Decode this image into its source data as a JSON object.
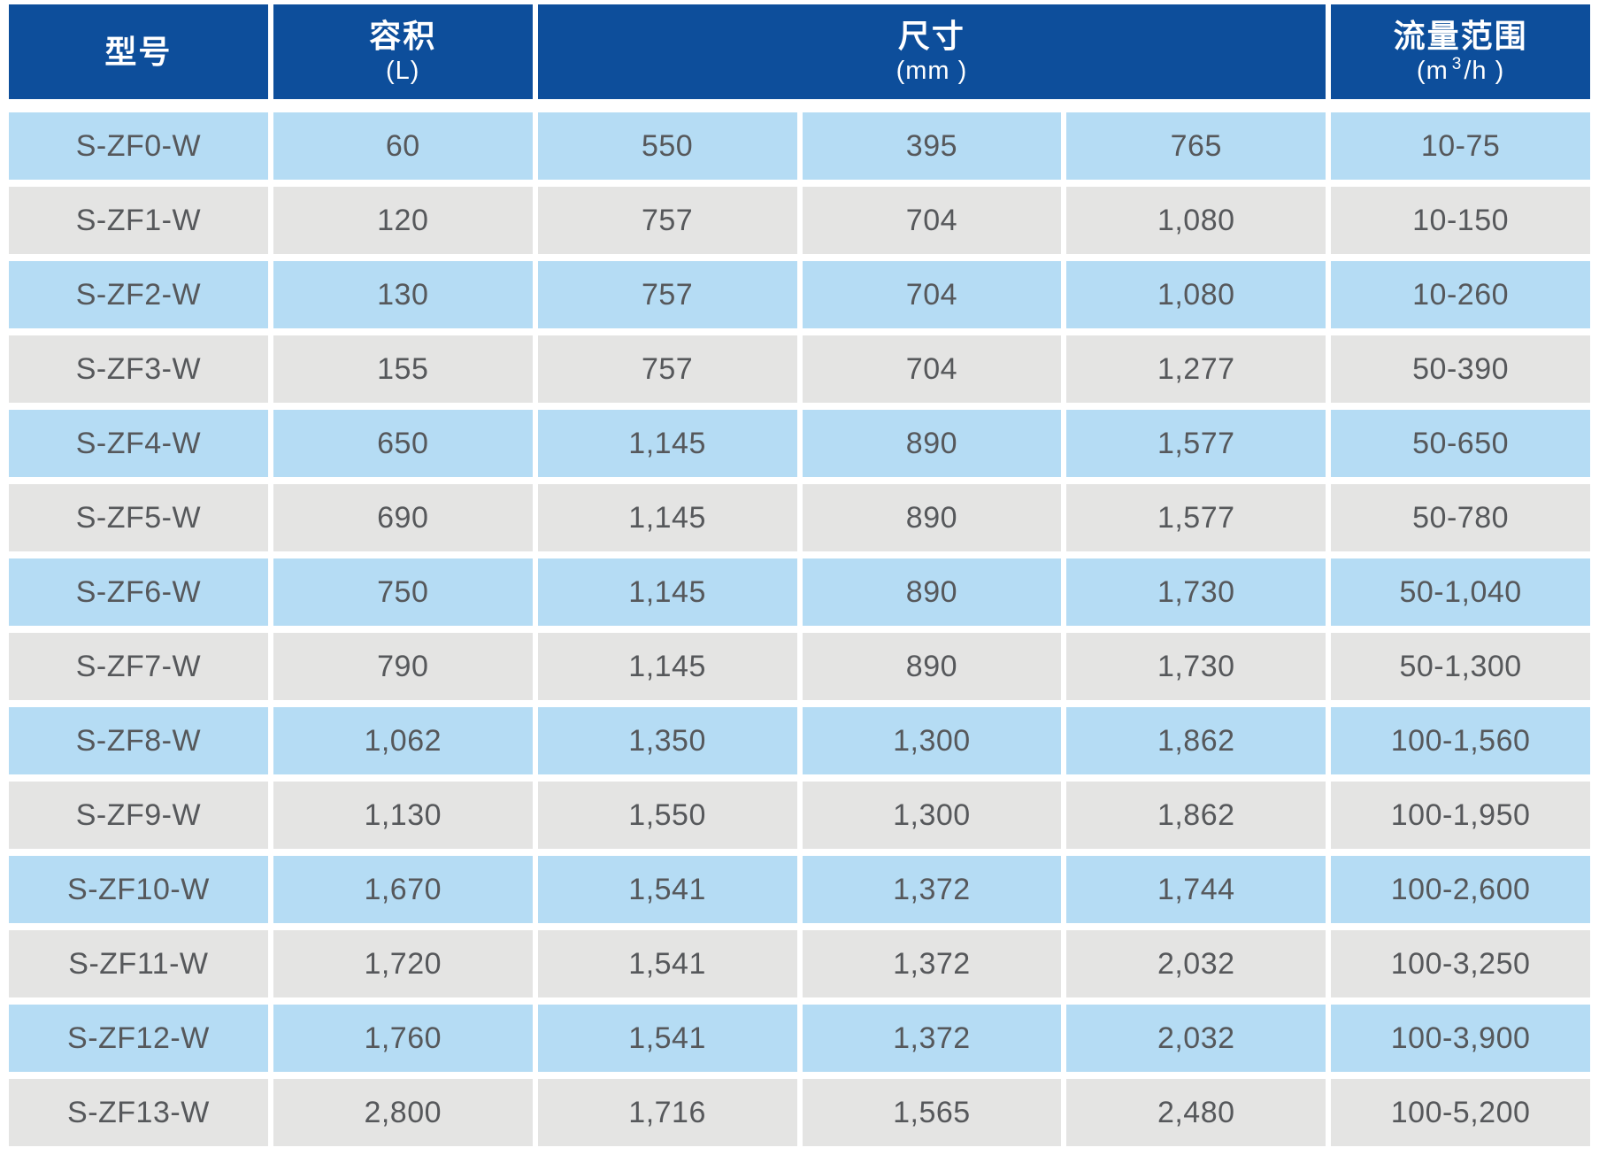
{
  "header": {
    "model_title": "型号",
    "volume_title": "容积",
    "volume_unit": "(L)",
    "dims_title": "尺寸",
    "dims_unit": "(mm )",
    "flow_title": "流量范围",
    "flow_unit_pre": "(m",
    "flow_unit_sup": "3",
    "flow_unit_post": "/h )"
  },
  "colors": {
    "header_bg": "#0D4E9B",
    "header_text": "#FFFFFF",
    "row_blue": "#B5DCF4",
    "row_gray": "#E4E4E3",
    "cell_text": "#56585B"
  },
  "chart_data": {
    "type": "table",
    "title": "",
    "columns": [
      "型号",
      "容积 (L)",
      "尺寸 (mm)",
      "尺寸 (mm)",
      "尺寸 (mm)",
      "流量范围 (m³/h)"
    ],
    "dimension_header_colspan": 3,
    "rows": [
      [
        "S-ZF0-W",
        "60",
        "550",
        "395",
        "765",
        "10-75"
      ],
      [
        "S-ZF1-W",
        "120",
        "757",
        "704",
        "1,080",
        "10-150"
      ],
      [
        "S-ZF2-W",
        "130",
        "757",
        "704",
        "1,080",
        "10-260"
      ],
      [
        "S-ZF3-W",
        "155",
        "757",
        "704",
        "1,277",
        "50-390"
      ],
      [
        "S-ZF4-W",
        "650",
        "1,145",
        "890",
        "1,577",
        "50-650"
      ],
      [
        "S-ZF5-W",
        "690",
        "1,145",
        "890",
        "1,577",
        "50-780"
      ],
      [
        "S-ZF6-W",
        "750",
        "1,145",
        "890",
        "1,730",
        "50-1,040"
      ],
      [
        "S-ZF7-W",
        "790",
        "1,145",
        "890",
        "1,730",
        "50-1,300"
      ],
      [
        "S-ZF8-W",
        "1,062",
        "1,350",
        "1,300",
        "1,862",
        "100-1,560"
      ],
      [
        "S-ZF9-W",
        "1,130",
        "1,550",
        "1,300",
        "1,862",
        "100-1,950"
      ],
      [
        "S-ZF10-W",
        "1,670",
        "1,541",
        "1,372",
        "1,744",
        "100-2,600"
      ],
      [
        "S-ZF11-W",
        "1,720",
        "1,541",
        "1,372",
        "2,032",
        "100-3,250"
      ],
      [
        "S-ZF12-W",
        "1,760",
        "1,541",
        "1,372",
        "2,032",
        "100-3,900"
      ],
      [
        "S-ZF13-W",
        "2,800",
        "1,716",
        "1,565",
        "2,480",
        "100-5,200"
      ]
    ]
  }
}
